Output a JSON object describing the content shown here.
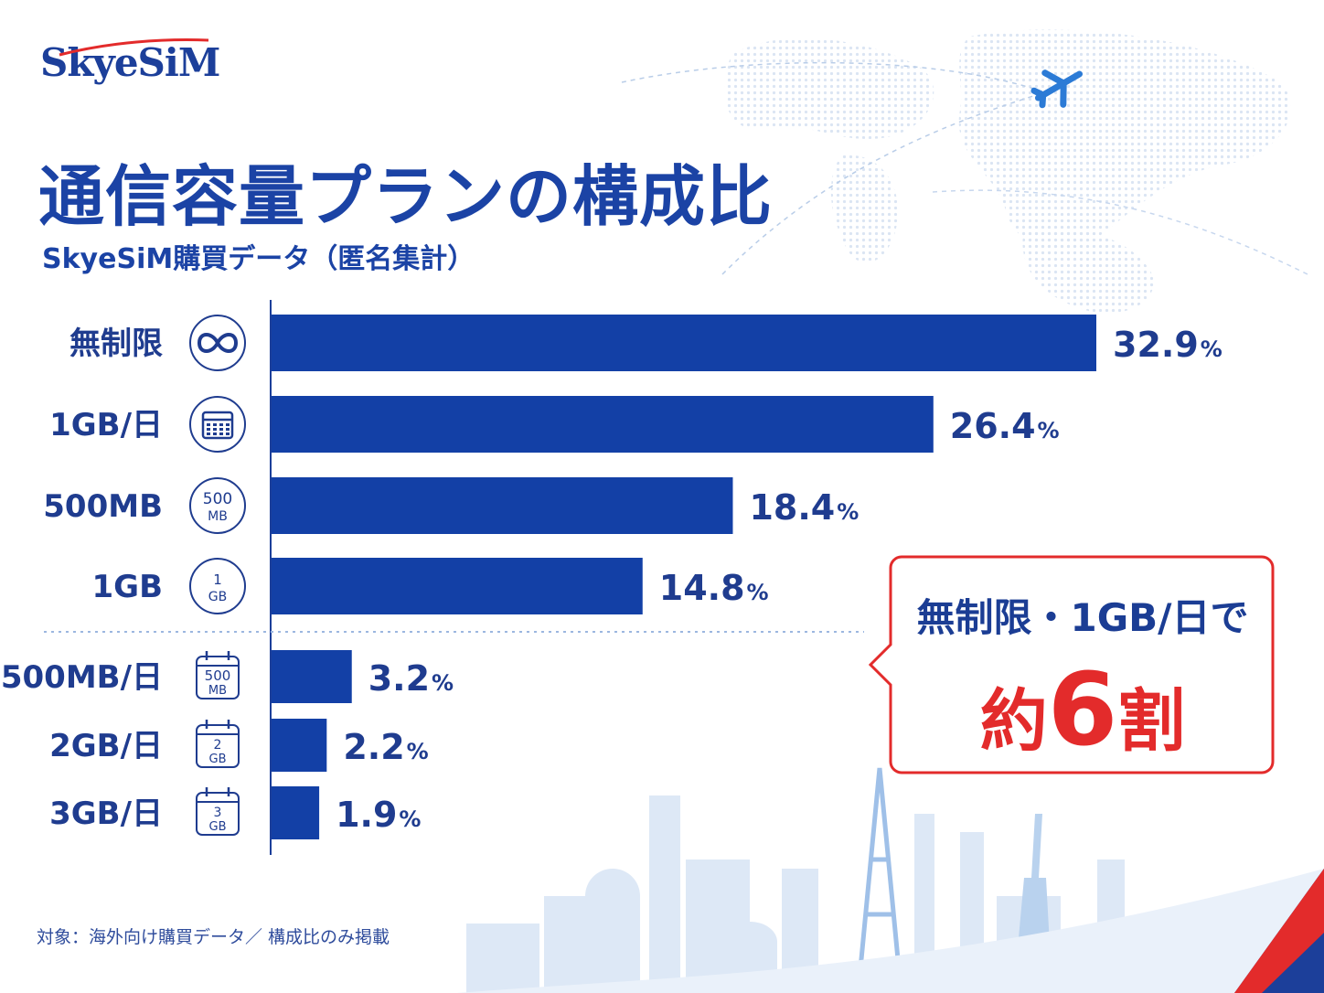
{
  "brand": {
    "logo_text": "SkyeSiM"
  },
  "header": {
    "title": "通信容量プランの構成比",
    "subtitle": "SkyeSiM購買データ（匿名集計）"
  },
  "chart_data": {
    "type": "bar",
    "orientation": "horizontal",
    "categories": [
      "無制限",
      "1GB/日",
      "500MB",
      "1GB",
      "500MB/日",
      "2GB/日",
      "3GB/日"
    ],
    "values": [
      32.9,
      26.4,
      18.4,
      14.8,
      3.2,
      2.2,
      1.9
    ],
    "value_labels": [
      "32.9",
      "26.4",
      "18.4",
      "14.8",
      "3.2",
      "2.2",
      "1.9"
    ],
    "unit": "%",
    "icons": [
      "infinity-icon",
      "calendar-icon",
      "500-mb-badge-icon",
      "1-gb-badge-icon",
      "500-mb-calendar-icon",
      "2-gb-calendar-icon",
      "3-gb-calendar-icon"
    ],
    "icon_labels": [
      [
        "",
        ""
      ],
      [
        "",
        ""
      ],
      [
        "500",
        "MB"
      ],
      [
        "1",
        "GB"
      ],
      [
        "500",
        "MB"
      ],
      [
        "2",
        "GB"
      ],
      [
        "3",
        "GB"
      ]
    ],
    "bar_color": "#1340a6",
    "xlim": [
      0,
      32.9
    ]
  },
  "callout": {
    "line1": "無制限・1GB/日で",
    "line2_prefix": "約",
    "line2_number": "6",
    "line2_suffix": "割",
    "border_color": "#e32b2b"
  },
  "footnote": "対象：海外向け購買データ／ 構成比のみ掲載",
  "colors": {
    "primary": "#1b43a5",
    "accent_red": "#e32b2b"
  }
}
